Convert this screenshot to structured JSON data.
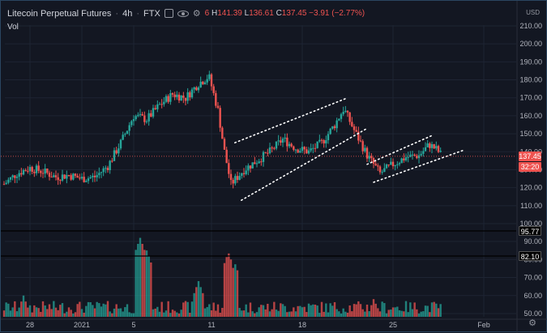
{
  "header": {
    "symbol": "Litecoin Perpetual Futures",
    "interval": "4h",
    "exchange": "FTX",
    "ohlc_visible": "6",
    "high_label": "H",
    "high": "141.39",
    "low_label": "L",
    "low": "136.61",
    "close_label": "C",
    "close": "137.45",
    "change": "−3.91 (−2.77%)"
  },
  "volume_label": "Vol",
  "currency": "USD",
  "price_axis": [
    "210.00",
    "200.00",
    "190.00",
    "180.00",
    "170.00",
    "160.00",
    "150.00",
    "140.00",
    "130.00",
    "120.00",
    "110.00",
    "100.00"
  ],
  "volume_axis": [
    "90.00",
    "80.00",
    "70.00",
    "60.00",
    "50.00"
  ],
  "price_tags": {
    "last_price": "137.45",
    "countdown": "32:20"
  },
  "volume_tags": {
    "upper": "95.77",
    "lower": "82.10"
  },
  "time_axis": [
    "28",
    "2021",
    "5",
    "11",
    "18",
    "25",
    "Feb"
  ],
  "colors": {
    "up": "#26a69a",
    "down": "#ef5350",
    "background": "#131722",
    "grid": "#1e2433",
    "tag_red": "#ef5350"
  },
  "icons": {
    "chart_type": "square-icon",
    "visibility": "eye-icon",
    "settings": "gear-icon"
  },
  "chart_data": {
    "type": "candlestick",
    "price_range": [
      95,
      215
    ],
    "volume_range": [
      45,
      95
    ],
    "last_price": 137.45,
    "levels": {
      "volume_upper": 95.77,
      "volume_lower": 82.1
    },
    "candles_close_path": [
      {
        "day": 26.0,
        "price": 122
      },
      {
        "day": 27.0,
        "price": 128
      },
      {
        "day": 28.0,
        "price": 131
      },
      {
        "day": 29.0,
        "price": 129
      },
      {
        "day": 30.0,
        "price": 126
      },
      {
        "day": 31.0,
        "price": 127
      },
      {
        "day": 32.0,
        "price": 125
      },
      {
        "day": 33.0,
        "price": 126
      },
      {
        "day": 34.0,
        "price": 132
      },
      {
        "day": 35.0,
        "price": 145
      },
      {
        "day": 36.0,
        "price": 160
      },
      {
        "day": 37.0,
        "price": 158
      },
      {
        "day": 38.0,
        "price": 166
      },
      {
        "day": 39.0,
        "price": 172
      },
      {
        "day": 40.0,
        "price": 170
      },
      {
        "day": 41.0,
        "price": 178
      },
      {
        "day": 41.8,
        "price": 182
      },
      {
        "day": 42.5,
        "price": 163
      },
      {
        "day": 43.0,
        "price": 140
      },
      {
        "day": 43.5,
        "price": 122
      },
      {
        "day": 44.5,
        "price": 130
      },
      {
        "day": 45.5,
        "price": 135
      },
      {
        "day": 46.5,
        "price": 140
      },
      {
        "day": 47.5,
        "price": 147
      },
      {
        "day": 48.5,
        "price": 142
      },
      {
        "day": 49.5,
        "price": 140
      },
      {
        "day": 50.5,
        "price": 145
      },
      {
        "day": 51.5,
        "price": 155
      },
      {
        "day": 52.2,
        "price": 164
      },
      {
        "day": 53.0,
        "price": 152
      },
      {
        "day": 54.0,
        "price": 138
      },
      {
        "day": 55.0,
        "price": 128
      },
      {
        "day": 56.0,
        "price": 133
      },
      {
        "day": 57.0,
        "price": 137
      },
      {
        "day": 58.0,
        "price": 138
      },
      {
        "day": 58.8,
        "price": 144
      },
      {
        "day": 59.4,
        "price": 141
      },
      {
        "day": 59.8,
        "price": 137.45
      }
    ],
    "trendlines": [
      {
        "from": {
          "day": 43.8,
          "price": 145
        },
        "to": {
          "day": 52.5,
          "price": 170
        }
      },
      {
        "from": {
          "day": 44.3,
          "price": 113
        },
        "to": {
          "day": 54.0,
          "price": 153
        }
      },
      {
        "from": {
          "day": 54.0,
          "price": 133
        },
        "to": {
          "day": 59.0,
          "price": 149
        }
      },
      {
        "from": {
          "day": 54.5,
          "price": 123
        },
        "to": {
          "day": 61.5,
          "price": 141
        }
      }
    ],
    "volume_spikes": [
      {
        "day": 36.5,
        "value": 92
      },
      {
        "day": 37.0,
        "value": 85
      },
      {
        "day": 43.3,
        "value": 84
      },
      {
        "day": 43.8,
        "value": 78
      },
      {
        "day": 41.0,
        "value": 68
      },
      {
        "day": 27.5,
        "value": 60
      },
      {
        "day": 54.5,
        "value": 58
      }
    ]
  }
}
